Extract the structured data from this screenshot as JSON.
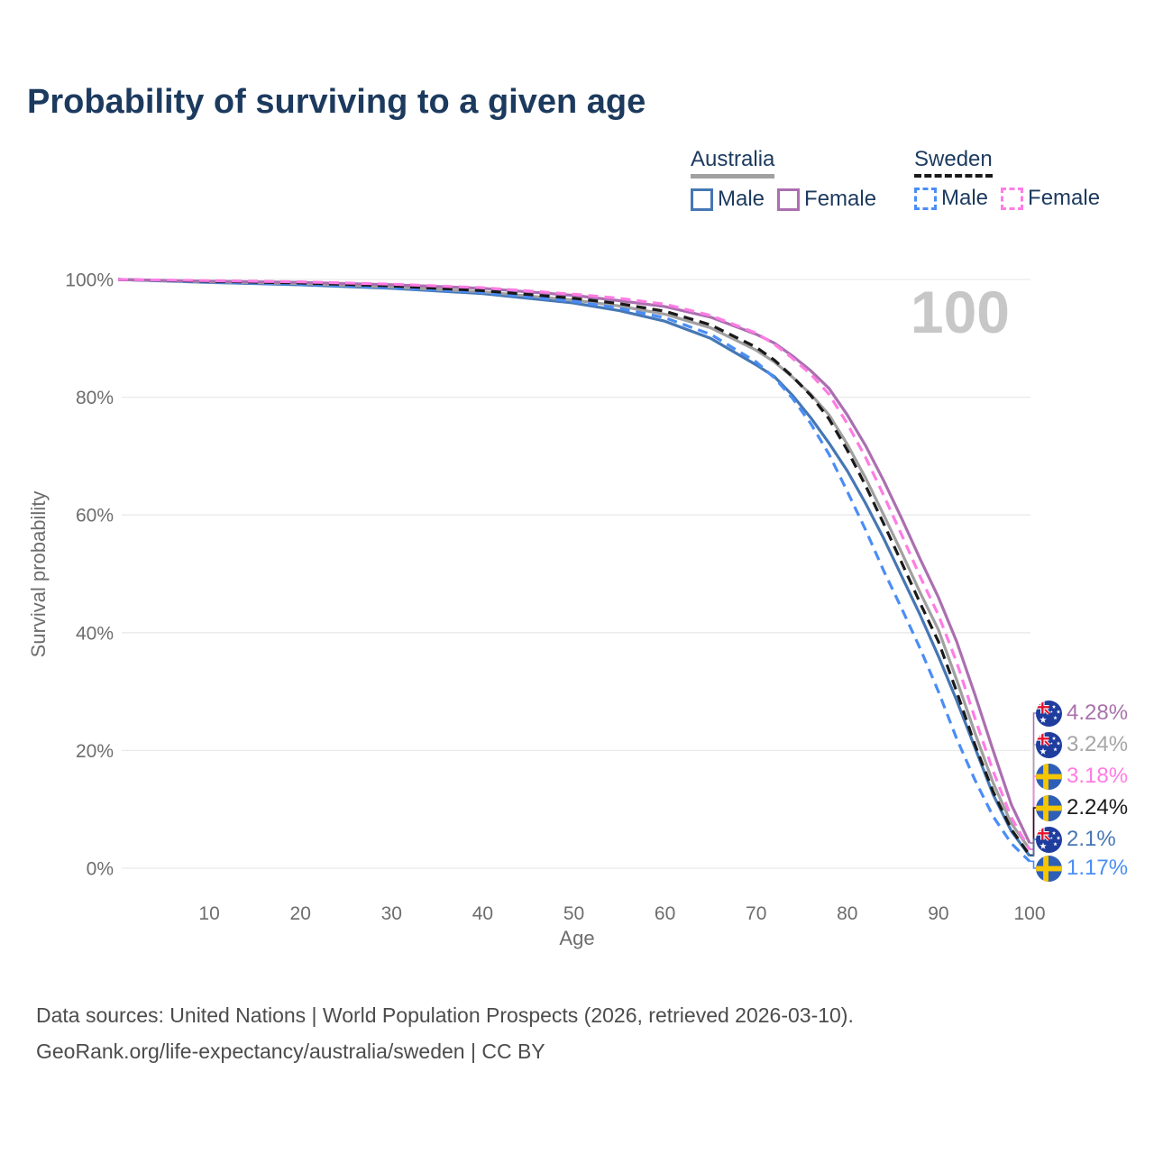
{
  "title": "Probability of surviving to a given age",
  "watermark_age": "100",
  "legend": {
    "groups": [
      {
        "label": "Australia",
        "series_index": 4,
        "items": [
          {
            "label": "Male",
            "series_index": 0
          },
          {
            "label": "Female",
            "series_index": 1
          }
        ]
      },
      {
        "label": "Sweden",
        "series_index": 5,
        "items": [
          {
            "label": "Male",
            "series_index": 2
          },
          {
            "label": "Female",
            "series_index": 3
          }
        ]
      }
    ]
  },
  "chart_data": {
    "type": "line",
    "title": "Probability of surviving to a given age",
    "xlabel": "Age",
    "ylabel": "Survival probability",
    "xlim": [
      0,
      100
    ],
    "ylim": [
      0,
      100
    ],
    "grid": "horizontal",
    "legend_position": "top-right",
    "x_ticks": [
      10,
      20,
      30,
      40,
      50,
      60,
      70,
      80,
      90,
      100
    ],
    "y_ticks": [
      0,
      20,
      40,
      60,
      80,
      100
    ],
    "y_tick_labels": [
      "0%",
      "20%",
      "40%",
      "60%",
      "80%",
      "100%"
    ],
    "ages": [
      0,
      10,
      20,
      30,
      40,
      50,
      55,
      60,
      65,
      70,
      72,
      74,
      76,
      78,
      80,
      82,
      84,
      86,
      88,
      90,
      92,
      94,
      96,
      98,
      100
    ],
    "series": [
      {
        "name": "Australia Male",
        "country": "Australia",
        "sex": "male",
        "color": "#4677b4",
        "dash": false,
        "values": [
          100,
          99.5,
          99.1,
          98.5,
          97.6,
          96.0,
          94.7,
          92.9,
          90.0,
          85.5,
          83.5,
          80.3,
          76.5,
          72.2,
          67.5,
          62.0,
          56.0,
          49.5,
          43.0,
          36.0,
          28.5,
          20.5,
          12.5,
          6.3,
          2.1
        ]
      },
      {
        "name": "Australia Female",
        "country": "Australia",
        "sex": "female",
        "color": "#ab6fb0",
        "dash": false,
        "values": [
          100,
          99.7,
          99.5,
          99.1,
          98.5,
          97.3,
          96.4,
          95.4,
          93.6,
          90.7,
          89.2,
          87.0,
          84.5,
          81.5,
          77.0,
          71.8,
          65.8,
          59.3,
          52.5,
          46.0,
          38.5,
          29.5,
          20.0,
          10.8,
          4.28
        ]
      },
      {
        "name": "Sweden Male",
        "country": "Sweden",
        "sex": "male",
        "color": "#4a8df6",
        "dash": true,
        "values": [
          100,
          99.6,
          99.2,
          98.6,
          97.8,
          96.3,
          95.1,
          93.5,
          90.7,
          86.0,
          83.3,
          79.8,
          75.5,
          70.3,
          64.0,
          57.5,
          50.5,
          44.0,
          37.3,
          30.0,
          22.0,
          15.0,
          8.8,
          4.2,
          1.17
        ]
      },
      {
        "name": "Sweden Female",
        "country": "Sweden",
        "sex": "female",
        "color": "#ff7ce3",
        "dash": true,
        "values": [
          100,
          99.8,
          99.6,
          99.2,
          98.6,
          97.5,
          96.8,
          95.8,
          93.9,
          90.9,
          89.0,
          86.6,
          83.9,
          80.5,
          75.5,
          69.8,
          63.3,
          56.5,
          49.5,
          43.0,
          35.0,
          25.5,
          16.5,
          8.6,
          3.18
        ]
      },
      {
        "name": "Australia (both sexes)",
        "country": "Australia",
        "sex": "total",
        "color": "#a0a0a0",
        "dash": false,
        "values": [
          100,
          99.6,
          99.3,
          98.7,
          97.9,
          96.5,
          95.5,
          94.1,
          91.8,
          88.0,
          86.0,
          83.4,
          80.5,
          77.0,
          72.0,
          66.3,
          60.0,
          53.5,
          46.8,
          40.5,
          32.0,
          23.0,
          14.5,
          7.6,
          3.24
        ]
      },
      {
        "name": "Sweden (both sexes)",
        "country": "Sweden",
        "sex": "total",
        "color": "#1a1a1a",
        "dash": true,
        "values": [
          100,
          99.7,
          99.4,
          98.9,
          98.1,
          96.8,
          95.9,
          94.6,
          92.3,
          88.5,
          86.3,
          83.5,
          80.3,
          76.3,
          71.0,
          65.0,
          58.5,
          51.8,
          45.0,
          38.5,
          30.0,
          21.0,
          13.0,
          6.6,
          2.24
        ]
      }
    ],
    "end_labels": [
      {
        "flag": "australia",
        "series": "Australia Female",
        "value": "4.28%",
        "color": "#a973ab"
      },
      {
        "flag": "australia",
        "series": "Australia (both sexes)",
        "value": "3.24%",
        "color": "#a6a6a6"
      },
      {
        "flag": "sweden",
        "series": "Sweden Female",
        "value": "3.18%",
        "color": "#ff7ce3"
      },
      {
        "flag": "sweden",
        "series": "Sweden (both sexes)",
        "value": "2.24%",
        "color": "#1a1a1a"
      },
      {
        "flag": "australia",
        "series": "Australia Male",
        "value": "2.1%",
        "color": "#4677b4"
      },
      {
        "flag": "sweden",
        "series": "Sweden Male",
        "value": "1.17%",
        "color": "#4a8df6"
      }
    ]
  },
  "footer": {
    "line1": "Data sources: United Nations | World Population Prospects (2026, retrieved 2026-03-10).",
    "line2": "GeoRank.org/life-expectancy/australia/sweden | CC BY"
  }
}
